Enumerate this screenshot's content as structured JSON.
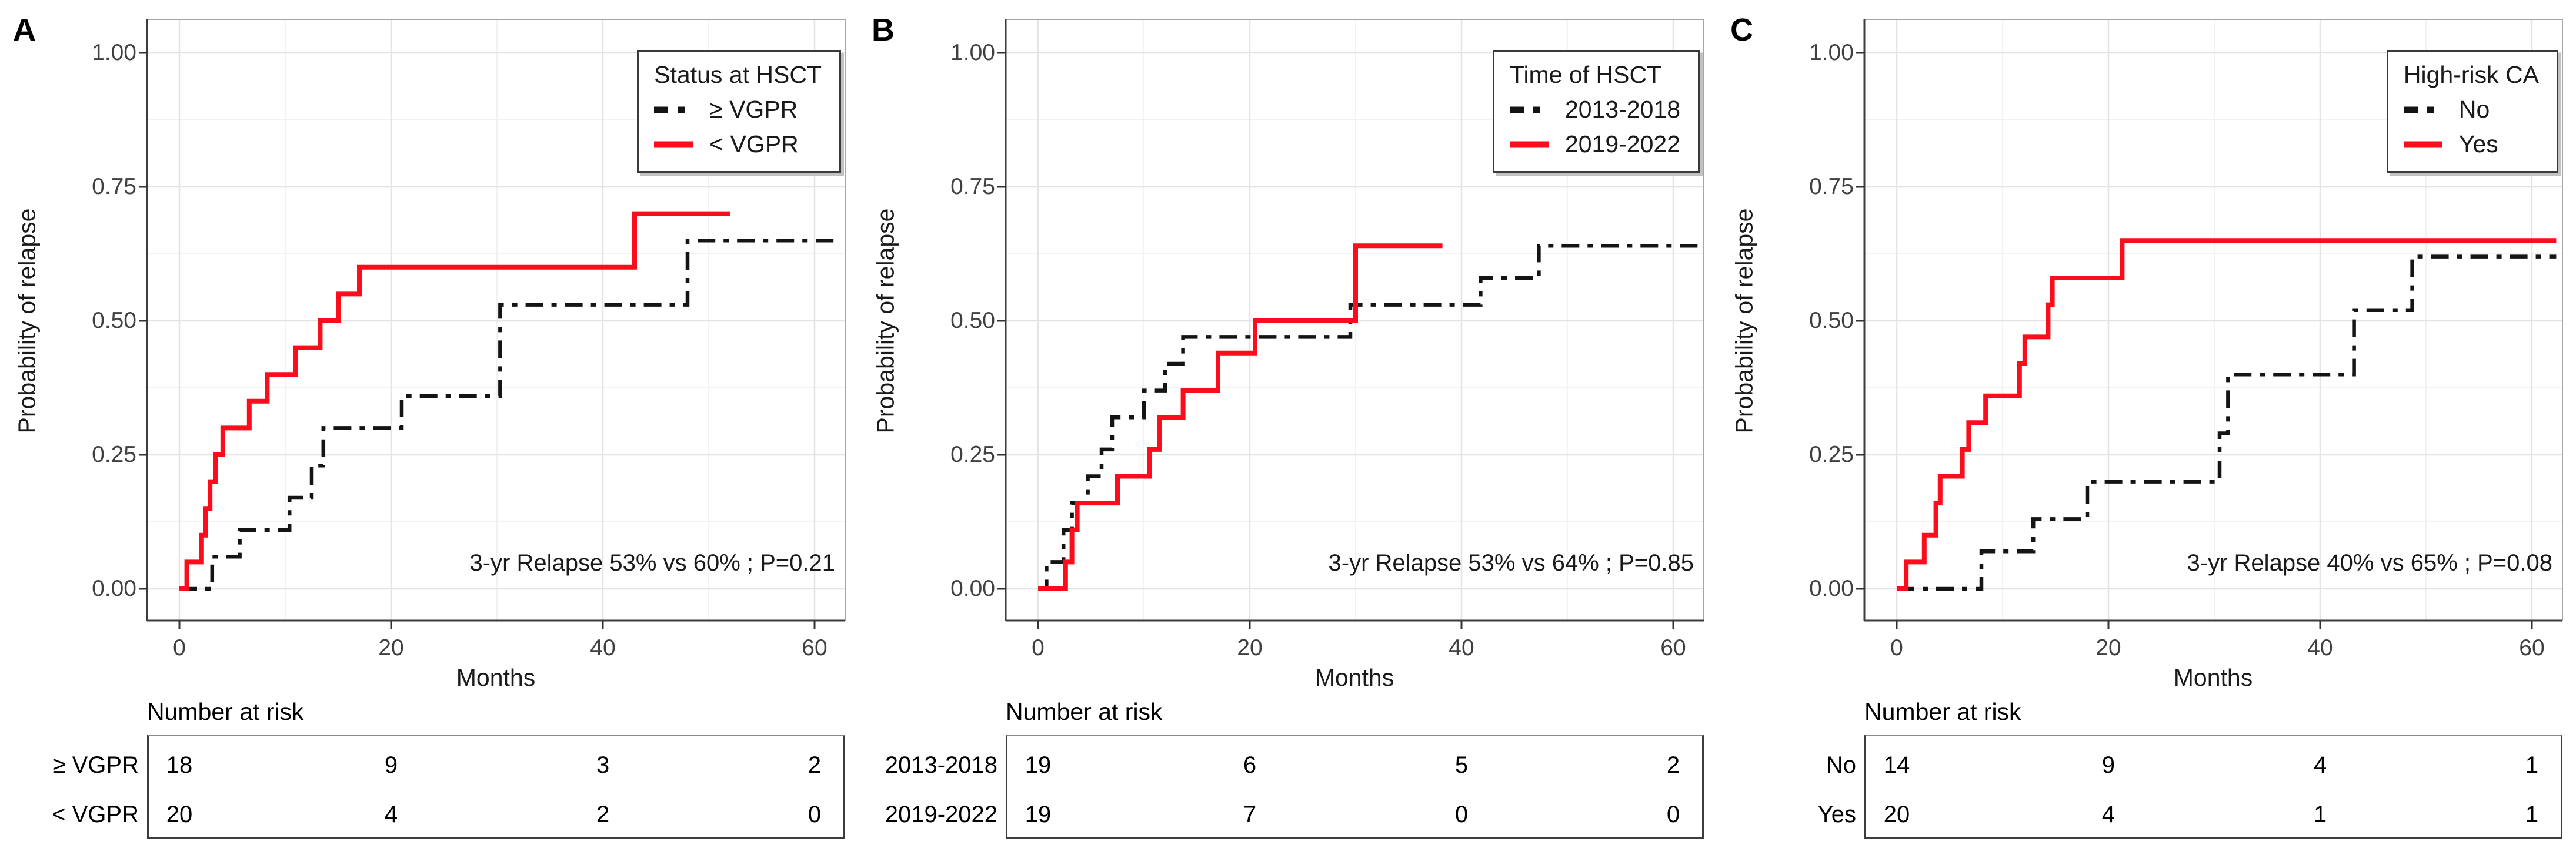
{
  "colors": {
    "red_series": "#fb0d1b",
    "black_series": "#141414",
    "grid_major": "#e4e4e4",
    "grid_minor": "#f2f2f2",
    "panel_border": "#a6a6a6",
    "axis_line": "#3c3c3c",
    "tick_text": "#404040"
  },
  "axis_labels": {
    "y": [
      "1.00",
      "0.75",
      "0.50",
      "0.25",
      "0.00"
    ],
    "x": [
      "0",
      "20",
      "40",
      "60"
    ]
  },
  "chart_data": [
    {
      "type": "line",
      "panel_letter": "A",
      "xlabel": "Months",
      "ylabel": "Probability of relapse",
      "xlim": [
        0,
        63
      ],
      "ylim": [
        0,
        1.0
      ],
      "xticks": [
        0,
        20,
        40,
        60
      ],
      "yticks": [
        0.0,
        0.25,
        0.5,
        0.75,
        1.0
      ],
      "grid": true,
      "legend": {
        "title": "Status at HSCT",
        "position": "top-right",
        "items": [
          {
            "label": "≥ VGPR",
            "color": "#141414",
            "style": "dashdot"
          },
          {
            "label": "< VGPR",
            "color": "#fb0d1b",
            "style": "solid"
          }
        ]
      },
      "annotation": "3-yr Relapse 53% vs 60% ; P=0.21",
      "series": [
        {
          "name": "≥ VGPR",
          "slug": "geq-vgpr",
          "color": "#141414",
          "style": "dashdot",
          "end": 62.5,
          "steps": [
            [
              3.1,
              0.06
            ],
            [
              5.7,
              0.11
            ],
            [
              10.4,
              0.17
            ],
            [
              12.5,
              0.23
            ],
            [
              13.6,
              0.3
            ],
            [
              21,
              0.36
            ],
            [
              30.3,
              0.53
            ],
            [
              48,
              0.65
            ]
          ]
        },
        {
          "name": "< VGPR",
          "slug": "lt-vgpr",
          "color": "#fb0d1b",
          "style": "solid",
          "end": 52,
          "steps": [
            [
              0.7,
              0.05
            ],
            [
              2.1,
              0.1
            ],
            [
              2.5,
              0.15
            ],
            [
              2.9,
              0.2
            ],
            [
              3.4,
              0.25
            ],
            [
              4.1,
              0.3
            ],
            [
              6.6,
              0.35
            ],
            [
              8.3,
              0.4
            ],
            [
              11,
              0.45
            ],
            [
              13.3,
              0.5
            ],
            [
              15,
              0.55
            ],
            [
              17,
              0.6
            ],
            [
              43,
              0.7
            ]
          ]
        }
      ],
      "risk_table": {
        "title": "Number at risk",
        "columns": [
          0,
          20,
          40,
          60
        ],
        "rows": [
          {
            "label": "≥ VGPR",
            "values": [
              18,
              9,
              3,
              2
            ]
          },
          {
            "label": "< VGPR",
            "values": [
              20,
              4,
              2,
              0
            ]
          }
        ]
      }
    },
    {
      "type": "line",
      "panel_letter": "B",
      "xlabel": "Months",
      "ylabel": "Probability of relapse",
      "xlim": [
        0,
        63
      ],
      "ylim": [
        0,
        1.0
      ],
      "xticks": [
        0,
        20,
        40,
        60
      ],
      "yticks": [
        0.0,
        0.25,
        0.5,
        0.75,
        1.0
      ],
      "grid": true,
      "legend": {
        "title": "Time of HSCT",
        "position": "top-right",
        "items": [
          {
            "label": "2013-2018",
            "color": "#141414",
            "style": "dashdot"
          },
          {
            "label": "2019-2022",
            "color": "#fb0d1b",
            "style": "solid"
          }
        ]
      },
      "annotation": "3-yr Relapse 53% vs 64% ; P=0.85",
      "series": [
        {
          "name": "2013-2018",
          "slug": "hsct-2013-2018",
          "color": "#141414",
          "style": "dashdot",
          "end": 62.5,
          "steps": [
            [
              0.8,
              0.05
            ],
            [
              2.4,
              0.11
            ],
            [
              3.2,
              0.16
            ],
            [
              4.7,
              0.21
            ],
            [
              6.0,
              0.26
            ],
            [
              7.0,
              0.32
            ],
            [
              10,
              0.37
            ],
            [
              12,
              0.42
            ],
            [
              13.7,
              0.47
            ],
            [
              29.5,
              0.53
            ],
            [
              41.8,
              0.58
            ],
            [
              47.3,
              0.64
            ]
          ]
        },
        {
          "name": "2019-2022",
          "slug": "hsct-2019-2022",
          "color": "#fb0d1b",
          "style": "solid",
          "end": 38.2,
          "steps": [
            [
              2.6,
              0.05
            ],
            [
              3.2,
              0.11
            ],
            [
              3.7,
              0.16
            ],
            [
              7.5,
              0.21
            ],
            [
              10.5,
              0.26
            ],
            [
              11.5,
              0.32
            ],
            [
              13.7,
              0.37
            ],
            [
              17,
              0.44
            ],
            [
              20.5,
              0.5
            ],
            [
              30,
              0.64
            ]
          ]
        }
      ],
      "risk_table": {
        "title": "Number at risk",
        "columns": [
          0,
          20,
          40,
          60
        ],
        "rows": [
          {
            "label": "2013-2018",
            "values": [
              19,
              6,
              5,
              2
            ]
          },
          {
            "label": "2019-2022",
            "values": [
              19,
              7,
              0,
              0
            ]
          }
        ]
      }
    },
    {
      "type": "line",
      "panel_letter": "C",
      "xlabel": "Months",
      "ylabel": "Probability of relapse",
      "xlim": [
        0,
        63
      ],
      "ylim": [
        0,
        1.0
      ],
      "xticks": [
        0,
        20,
        40,
        60
      ],
      "yticks": [
        0.0,
        0.25,
        0.5,
        0.75,
        1.0
      ],
      "grid": true,
      "legend": {
        "title": "High-risk CA",
        "position": "top-right",
        "items": [
          {
            "label": "No",
            "color": "#141414",
            "style": "dashdot"
          },
          {
            "label": "Yes",
            "color": "#fb0d1b",
            "style": "solid"
          }
        ]
      },
      "annotation": "3-yr Relapse 40% vs 65% ; P=0.08",
      "series": [
        {
          "name": "No",
          "slug": "high-risk-no",
          "color": "#141414",
          "style": "dashdot",
          "end": 62.3,
          "steps": [
            [
              8,
              0.07
            ],
            [
              12.9,
              0.13
            ],
            [
              18,
              0.2
            ],
            [
              30.5,
              0.29
            ],
            [
              31.3,
              0.4
            ],
            [
              43.2,
              0.52
            ],
            [
              48.7,
              0.62
            ]
          ]
        },
        {
          "name": "Yes",
          "slug": "high-risk-yes",
          "color": "#fb0d1b",
          "style": "solid",
          "end": 62.3,
          "steps": [
            [
              0.9,
              0.05
            ],
            [
              2.6,
              0.1
            ],
            [
              3.7,
              0.16
            ],
            [
              4.1,
              0.21
            ],
            [
              6.2,
              0.26
            ],
            [
              6.8,
              0.31
            ],
            [
              8.4,
              0.36
            ],
            [
              11.6,
              0.42
            ],
            [
              12.1,
              0.47
            ],
            [
              14.3,
              0.53
            ],
            [
              14.7,
              0.58
            ],
            [
              21.3,
              0.65
            ]
          ]
        }
      ],
      "risk_table": {
        "title": "Number at risk",
        "columns": [
          0,
          20,
          40,
          60
        ],
        "rows": [
          {
            "label": "No",
            "values": [
              14,
              9,
              4,
              1
            ]
          },
          {
            "label": "Yes",
            "values": [
              20,
              4,
              1,
              1
            ]
          }
        ]
      }
    }
  ]
}
